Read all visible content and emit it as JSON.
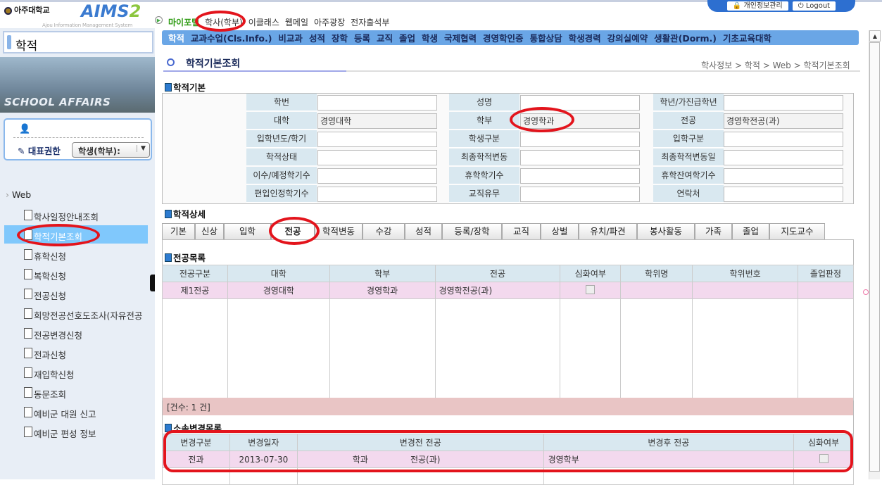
{
  "header": {
    "univ_logo": "아주대학교",
    "aims_logo": "AIMS",
    "aims_num": "2",
    "aims_sub": "Ajou Information Management System",
    "top_nav": [
      "마이포털",
      "학사(학부)",
      "이클래스",
      "웹메일",
      "아주광장",
      "전자출석부"
    ],
    "privacy": "개인정보관리",
    "logout": "Logout",
    "main_nav": [
      "학적",
      "교과수업(Cls.Info.)",
      "비교과",
      "성적",
      "장학",
      "등록",
      "교직",
      "졸업",
      "학생",
      "국제협력",
      "경영학인증",
      "통합상담",
      "학생경력",
      "강의실예약",
      "생활관(Dorm.)",
      "기초교육대학"
    ]
  },
  "sidebar": {
    "title": "학적",
    "banner": "SCHOOL AFFAIRS",
    "role_label": "대표권한",
    "role_value": "학생(학부):",
    "root": "Web",
    "items": [
      "학사일정안내조회",
      "학적기본조회",
      "휴학신청",
      "복학신청",
      "전공신청",
      "희망전공선호도조사(자유전공",
      "전공변경신청",
      "전과신청",
      "재입학신청",
      "동문조회",
      "예비군 대원 신고",
      "예비군 편성 정보"
    ],
    "selected_index": 1
  },
  "page": {
    "title": "학적기본조회",
    "breadcrumb": "학사정보 > 학적 > Web > 학적기본조회"
  },
  "basic": {
    "title": "학적기본",
    "rows": [
      [
        {
          "label": "학번",
          "value": ""
        },
        {
          "label": "성명",
          "value": ""
        },
        {
          "label": "학년/가진급학년",
          "value": ""
        }
      ],
      [
        {
          "label": "대학",
          "value": "경영대학"
        },
        {
          "label": "학부",
          "value": "경영학과"
        },
        {
          "label": "전공",
          "value": "경영학전공(과)"
        }
      ],
      [
        {
          "label": "입학년도/학기",
          "value": ""
        },
        {
          "label": "학생구분",
          "value": ""
        },
        {
          "label": "입학구분",
          "value": ""
        }
      ],
      [
        {
          "label": "학적상태",
          "value": ""
        },
        {
          "label": "최종학적변동",
          "value": ""
        },
        {
          "label": "최종학적변동일",
          "value": ""
        }
      ],
      [
        {
          "label": "이수/예정학기수",
          "value": ""
        },
        {
          "label": "휴학학기수",
          "value": ""
        },
        {
          "label": "휴학잔여학기수",
          "value": ""
        }
      ],
      [
        {
          "label": "편입인정학기수",
          "value": ""
        },
        {
          "label": "교직유무",
          "value": ""
        },
        {
          "label": "연락처",
          "value": ""
        }
      ]
    ]
  },
  "detail": {
    "title": "학적상세",
    "tabs": [
      "기본",
      "신상",
      "입학",
      "전공",
      "학적변동",
      "수강",
      "성적",
      "등록/장학",
      "교직",
      "상벌",
      "유치/파견",
      "봉사활동",
      "가족",
      "졸업",
      "지도교수"
    ],
    "active_tab": 3
  },
  "major_list": {
    "title": "전공목록",
    "columns": [
      "전공구분",
      "대학",
      "학부",
      "전공",
      "심화여부",
      "학위명",
      "학위번호",
      "졸업판정"
    ],
    "rows": [
      [
        "제1전공",
        "경영대학",
        "경영학과",
        "경영학전공(과)",
        false,
        "",
        "",
        ""
      ]
    ],
    "count": "[건수: 1 건]"
  },
  "change_list": {
    "title": "소속변경목록",
    "columns": [
      "변경구분",
      "변경일자",
      "변경전 전공",
      "변경후 전공",
      "심화여부"
    ],
    "rows": [
      {
        "type": "전과",
        "date": "2013-07-30",
        "before_dept": "학과",
        "before_major": "전공(과)",
        "after": "경영학부",
        "intensive": false
      }
    ]
  }
}
